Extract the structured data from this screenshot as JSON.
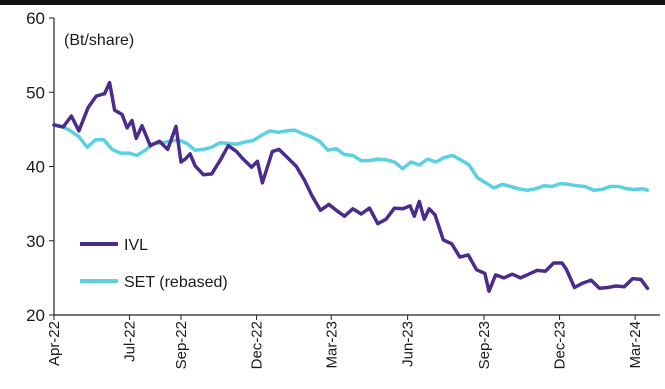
{
  "chart_data": {
    "type": "line",
    "ylabel": "(Bt/share)",
    "ylim": [
      20,
      60
    ],
    "yticks": [
      "20",
      "30",
      "40",
      "50",
      "60"
    ],
    "xlim": [
      "2022-04-01",
      "2024-03-31"
    ],
    "xticks": [
      {
        "label": "Apr-22",
        "date": "2022-04-01"
      },
      {
        "label": "Jul-22",
        "date": "2022-07-01"
      },
      {
        "label": "Sep-22",
        "date": "2022-09-01"
      },
      {
        "label": "Dec-22",
        "date": "2022-12-01"
      },
      {
        "label": "Mar-23",
        "date": "2023-03-01"
      },
      {
        "label": "Jun-23",
        "date": "2023-06-01"
      },
      {
        "label": "Sep-23",
        "date": "2023-09-01"
      },
      {
        "label": "Dec-23",
        "date": "2023-12-01"
      },
      {
        "label": "Mar-24",
        "date": "2024-03-01"
      }
    ],
    "grid": false,
    "legend_position": "bottom-left",
    "series": [
      {
        "name": "IVL",
        "color": "#4b2c8c",
        "points": [
          [
            "2022-04-01",
            45.6
          ],
          [
            "2022-04-12",
            45.3
          ],
          [
            "2022-04-22",
            46.8
          ],
          [
            "2022-05-01",
            44.8
          ],
          [
            "2022-05-12",
            47.9
          ],
          [
            "2022-05-22",
            49.5
          ],
          [
            "2022-06-01",
            49.8
          ],
          [
            "2022-06-07",
            51.3
          ],
          [
            "2022-06-13",
            47.6
          ],
          [
            "2022-06-22",
            47.0
          ],
          [
            "2022-06-28",
            45.2
          ],
          [
            "2022-07-04",
            46.2
          ],
          [
            "2022-07-09",
            43.8
          ],
          [
            "2022-07-16",
            45.5
          ],
          [
            "2022-07-26",
            42.8
          ],
          [
            "2022-08-06",
            43.4
          ],
          [
            "2022-08-16",
            42.3
          ],
          [
            "2022-08-26",
            45.4
          ],
          [
            "2022-09-01",
            40.6
          ],
          [
            "2022-09-06",
            41.0
          ],
          [
            "2022-09-12",
            41.7
          ],
          [
            "2022-09-18",
            40.1
          ],
          [
            "2022-09-28",
            38.9
          ],
          [
            "2022-10-08",
            39.0
          ],
          [
            "2022-10-18",
            40.8
          ],
          [
            "2022-10-28",
            42.8
          ],
          [
            "2022-11-07",
            42.0
          ],
          [
            "2022-11-14",
            41.1
          ],
          [
            "2022-11-25",
            39.9
          ],
          [
            "2022-12-02",
            40.7
          ],
          [
            "2022-12-08",
            37.8
          ],
          [
            "2022-12-12",
            39.2
          ],
          [
            "2022-12-20",
            42.0
          ],
          [
            "2022-12-28",
            42.3
          ],
          [
            "2023-01-08",
            41.1
          ],
          [
            "2023-01-18",
            40.0
          ],
          [
            "2023-01-28",
            38.1
          ],
          [
            "2023-02-06",
            36.0
          ],
          [
            "2023-02-16",
            34.1
          ],
          [
            "2023-02-26",
            34.9
          ],
          [
            "2023-03-07",
            34.1
          ],
          [
            "2023-03-17",
            33.3
          ],
          [
            "2023-03-27",
            34.3
          ],
          [
            "2023-04-06",
            33.6
          ],
          [
            "2023-04-16",
            34.4
          ],
          [
            "2023-04-26",
            32.3
          ],
          [
            "2023-05-06",
            32.9
          ],
          [
            "2023-05-16",
            34.4
          ],
          [
            "2023-05-26",
            34.3
          ],
          [
            "2023-06-04",
            34.7
          ],
          [
            "2023-06-09",
            33.3
          ],
          [
            "2023-06-15",
            35.3
          ],
          [
            "2023-06-21",
            32.9
          ],
          [
            "2023-06-27",
            34.3
          ],
          [
            "2023-07-04",
            33.5
          ],
          [
            "2023-07-14",
            30.1
          ],
          [
            "2023-07-24",
            29.6
          ],
          [
            "2023-08-03",
            27.8
          ],
          [
            "2023-08-13",
            28.1
          ],
          [
            "2023-08-23",
            26.1
          ],
          [
            "2023-09-02",
            25.6
          ],
          [
            "2023-09-07",
            23.2
          ],
          [
            "2023-09-15",
            25.4
          ],
          [
            "2023-09-25",
            25.0
          ],
          [
            "2023-10-05",
            25.5
          ],
          [
            "2023-10-15",
            25.0
          ],
          [
            "2023-10-25",
            25.5
          ],
          [
            "2023-11-04",
            26.0
          ],
          [
            "2023-11-14",
            25.9
          ],
          [
            "2023-11-24",
            27.0
          ],
          [
            "2023-12-04",
            27.0
          ],
          [
            "2023-12-09",
            26.2
          ],
          [
            "2023-12-19",
            23.7
          ],
          [
            "2023-12-29",
            24.3
          ],
          [
            "2024-01-08",
            24.7
          ],
          [
            "2024-01-18",
            23.6
          ],
          [
            "2024-01-28",
            23.7
          ],
          [
            "2024-02-07",
            23.9
          ],
          [
            "2024-02-17",
            23.8
          ],
          [
            "2024-02-27",
            24.9
          ],
          [
            "2024-03-08",
            24.8
          ],
          [
            "2024-03-16",
            23.6
          ]
        ]
      },
      {
        "name": "SET (rebased)",
        "color": "#5bd0e0",
        "points": [
          [
            "2022-04-01",
            45.6
          ],
          [
            "2022-04-11",
            45.4
          ],
          [
            "2022-04-21",
            44.8
          ],
          [
            "2022-05-01",
            44.0
          ],
          [
            "2022-05-11",
            42.6
          ],
          [
            "2022-05-21",
            43.6
          ],
          [
            "2022-05-31",
            43.6
          ],
          [
            "2022-06-10",
            42.3
          ],
          [
            "2022-06-20",
            41.8
          ],
          [
            "2022-06-30",
            41.8
          ],
          [
            "2022-07-10",
            41.5
          ],
          [
            "2022-07-20",
            42.2
          ],
          [
            "2022-07-30",
            43.1
          ],
          [
            "2022-08-09",
            43.2
          ],
          [
            "2022-08-19",
            43.4
          ],
          [
            "2022-08-29",
            43.6
          ],
          [
            "2022-09-08",
            43.1
          ],
          [
            "2022-09-18",
            42.2
          ],
          [
            "2022-09-28",
            42.3
          ],
          [
            "2022-10-08",
            42.6
          ],
          [
            "2022-10-18",
            43.2
          ],
          [
            "2022-10-28",
            43.1
          ],
          [
            "2022-11-07",
            43.0
          ],
          [
            "2022-11-17",
            43.3
          ],
          [
            "2022-11-27",
            43.5
          ],
          [
            "2022-12-07",
            44.2
          ],
          [
            "2022-12-17",
            44.8
          ],
          [
            "2022-12-27",
            44.6
          ],
          [
            "2023-01-06",
            44.8
          ],
          [
            "2023-01-16",
            44.9
          ],
          [
            "2023-01-26",
            44.4
          ],
          [
            "2023-02-05",
            44.0
          ],
          [
            "2023-02-15",
            43.4
          ],
          [
            "2023-02-25",
            42.2
          ],
          [
            "2023-03-07",
            42.4
          ],
          [
            "2023-03-17",
            41.6
          ],
          [
            "2023-03-27",
            41.5
          ],
          [
            "2023-04-06",
            40.8
          ],
          [
            "2023-04-16",
            40.8
          ],
          [
            "2023-04-26",
            41.0
          ],
          [
            "2023-05-06",
            40.9
          ],
          [
            "2023-05-16",
            40.6
          ],
          [
            "2023-05-26",
            39.7
          ],
          [
            "2023-06-05",
            40.6
          ],
          [
            "2023-06-15",
            40.2
          ],
          [
            "2023-06-25",
            41.0
          ],
          [
            "2023-07-05",
            40.6
          ],
          [
            "2023-07-15",
            41.2
          ],
          [
            "2023-07-25",
            41.5
          ],
          [
            "2023-08-04",
            40.9
          ],
          [
            "2023-08-14",
            40.2
          ],
          [
            "2023-08-24",
            38.5
          ],
          [
            "2023-09-03",
            37.8
          ],
          [
            "2023-09-13",
            37.1
          ],
          [
            "2023-09-23",
            37.6
          ],
          [
            "2023-10-03",
            37.3
          ],
          [
            "2023-10-13",
            37.0
          ],
          [
            "2023-10-23",
            36.8
          ],
          [
            "2023-11-02",
            37.0
          ],
          [
            "2023-11-12",
            37.4
          ],
          [
            "2023-11-22",
            37.3
          ],
          [
            "2023-12-02",
            37.7
          ],
          [
            "2023-12-12",
            37.6
          ],
          [
            "2023-12-22",
            37.4
          ],
          [
            "2024-01-01",
            37.3
          ],
          [
            "2024-01-11",
            36.8
          ],
          [
            "2024-01-21",
            36.9
          ],
          [
            "2024-01-31",
            37.3
          ],
          [
            "2024-02-10",
            37.3
          ],
          [
            "2024-02-20",
            37.0
          ],
          [
            "2024-03-01",
            36.9
          ],
          [
            "2024-03-10",
            37.0
          ],
          [
            "2024-03-16",
            36.8
          ]
        ]
      }
    ]
  }
}
